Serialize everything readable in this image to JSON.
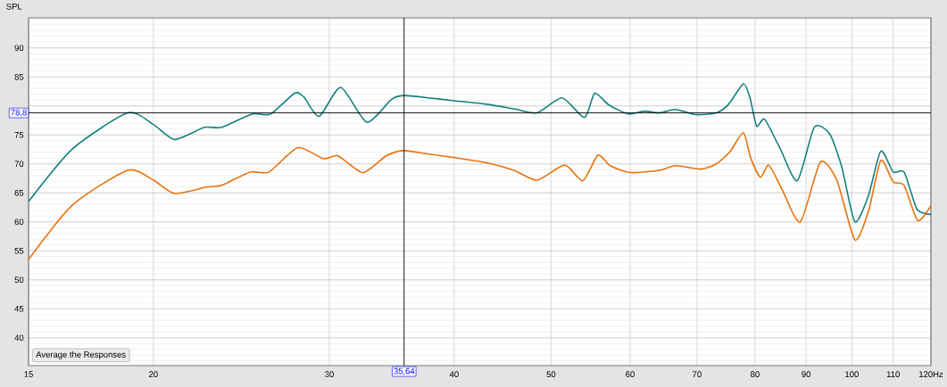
{
  "chart_data": {
    "type": "line",
    "ylabel": "SPL",
    "log": "x",
    "grid": true,
    "marker": "none",
    "line_style": "solid",
    "xlim": [
      15,
      120
    ],
    "ylim": [
      35.2,
      95.2
    ],
    "xticks": [
      15,
      20,
      30,
      40,
      50,
      60,
      70,
      80,
      90,
      100,
      110,
      {
        "value": 120,
        "label": "120Hz"
      }
    ],
    "yticks": [
      40,
      45,
      50,
      55,
      60,
      65,
      70,
      75,
      {
        "value": 80,
        "label": null
      },
      85,
      90
    ],
    "ref_lines": [
      {
        "axis": "y",
        "value": 78.8,
        "label": "78,8",
        "color": "#000000"
      },
      {
        "axis": "x",
        "value": 35.64,
        "label": "35,64",
        "color": "#000000"
      }
    ],
    "annotations": [
      "Average the Responses"
    ],
    "series": [
      {
        "color": "#12807f",
        "x": [
          15,
          16.6,
          18.85,
          20,
          21.0,
          22.5,
          23.4,
          25.1,
          26.2,
          27.7,
          28.3,
          29.3,
          30.8,
          32.7,
          34.6,
          35.6,
          37.7,
          40,
          43.1,
          45.9,
          48.4,
          51.3,
          54.0,
          55.3,
          57.1,
          59.8,
          62.0,
          64.2,
          66.6,
          69.8,
          73.2,
          75.3,
          77.9,
          79.1,
          80.3,
          81.8,
          84.8,
          88.2,
          91.7,
          95.0,
          97.7,
          100.7,
          103.9,
          106.9,
          110,
          112.8,
          116.2,
          120
        ],
        "values": [
          63.5,
          72.6,
          78.8,
          76.8,
          74.2,
          76.3,
          76.3,
          78.6,
          78.6,
          82.2,
          81.5,
          78.2,
          83.2,
          77.2,
          81.1,
          81.8,
          81.4,
          80.9,
          80.3,
          79.5,
          78.8,
          81.4,
          78.0,
          82.2,
          80.2,
          78.6,
          79.1,
          78.8,
          79.4,
          78.5,
          78.8,
          80.3,
          83.8,
          81.4,
          76.5,
          77.7,
          72.6,
          67.1,
          76.3,
          75.2,
          69.5,
          60.0,
          64.5,
          72.2,
          68.6,
          68.6,
          62.2,
          61.3
        ]
      },
      {
        "color": "#e8720c",
        "x": [
          15,
          16.6,
          18.85,
          20,
          21.0,
          22.6,
          23.4,
          25.0,
          26.1,
          27.9,
          29.6,
          30.6,
          32.4,
          34.2,
          35.6,
          37.7,
          40,
          43.1,
          45.9,
          48.4,
          51.6,
          53.8,
          55.7,
          57.3,
          60,
          64.2,
          66.6,
          70.6,
          73.2,
          75.6,
          77.9,
          79.2,
          81,
          82.6,
          85.1,
          88.8,
          93.0,
          96.6,
          100.7,
          103.9,
          106.9,
          110,
          112.8,
          116.4,
          120
        ],
        "values": [
          53.5,
          62.9,
          68.9,
          67.2,
          64.9,
          66.0,
          66.3,
          68.6,
          68.6,
          72.8,
          70.9,
          71.4,
          68.5,
          71.4,
          72.3,
          71.7,
          71.1,
          70.2,
          68.9,
          67.2,
          69.8,
          67.1,
          71.5,
          69.7,
          68.5,
          68.9,
          69.7,
          69.1,
          70.0,
          72.2,
          75.4,
          71.1,
          67.7,
          69.8,
          65.7,
          60.0,
          70.3,
          67.2,
          56.9,
          61.8,
          70.6,
          66.9,
          66.3,
          60.2,
          62.8
        ]
      }
    ]
  }
}
